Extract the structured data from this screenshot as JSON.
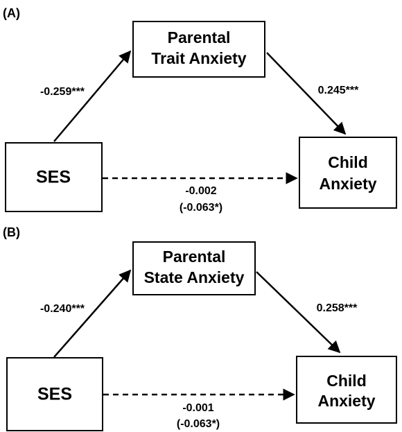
{
  "panels": [
    {
      "label": "(A)",
      "nodes": [
        {
          "lines": [
            "Parental",
            "Trait Anxiety"
          ]
        },
        {
          "lines": [
            "SES"
          ]
        },
        {
          "lines": [
            "Child",
            "Anxiety"
          ]
        }
      ],
      "paths": {
        "a": "-0.259***",
        "b": "0.245***",
        "direct": "-0.002",
        "total": "(-0.063*)"
      }
    },
    {
      "label": "(B)",
      "nodes": [
        {
          "lines": [
            "Parental",
            "State Anxiety"
          ]
        },
        {
          "lines": [
            "SES"
          ]
        },
        {
          "lines": [
            "Child",
            "Anxiety"
          ]
        }
      ],
      "paths": {
        "a": "-0.240***",
        "b": "0.258***",
        "direct": "-0.001",
        "total": "(-0.063*)"
      }
    }
  ]
}
